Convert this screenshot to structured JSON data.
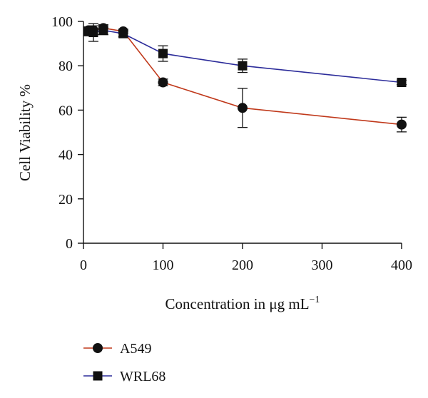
{
  "chart_data": {
    "type": "line",
    "title": "",
    "xlabel": "Concentration in μg mL",
    "xlabel_superscript": "−1",
    "ylabel": "Cell Viability %",
    "xlim": [
      0,
      400
    ],
    "ylim": [
      0,
      100
    ],
    "x_ticks": [
      0,
      100,
      200,
      300,
      400
    ],
    "y_ticks": [
      0,
      20,
      40,
      60,
      80,
      100
    ],
    "x_tick_labels": [
      "0",
      "100",
      "200",
      "300",
      "400"
    ],
    "y_tick_labels": [
      "0",
      "20",
      "40",
      "60",
      "80",
      "100"
    ],
    "grid": false,
    "legend_position": "bottom-left",
    "series": [
      {
        "name": "A549",
        "marker": "circle",
        "line_color": "#c0391b",
        "marker_color": "#111111",
        "x": [
          6.25,
          12.5,
          25,
          50,
          100,
          200,
          400
        ],
        "y": [
          96,
          96,
          97,
          95.5,
          72.5,
          61,
          53.5
        ],
        "err": [
          1.5,
          2,
          1.5,
          1,
          1.5,
          8.8,
          3.3
        ]
      },
      {
        "name": "WRL68",
        "marker": "square",
        "line_color": "#2c2c9a",
        "marker_color": "#111111",
        "x": [
          6.25,
          12.5,
          25,
          50,
          100,
          200,
          400
        ],
        "y": [
          95.5,
          95,
          96,
          94.5,
          85.5,
          80,
          72.5
        ],
        "err": [
          2,
          4,
          2,
          1.5,
          3.5,
          3,
          1
        ]
      }
    ]
  }
}
